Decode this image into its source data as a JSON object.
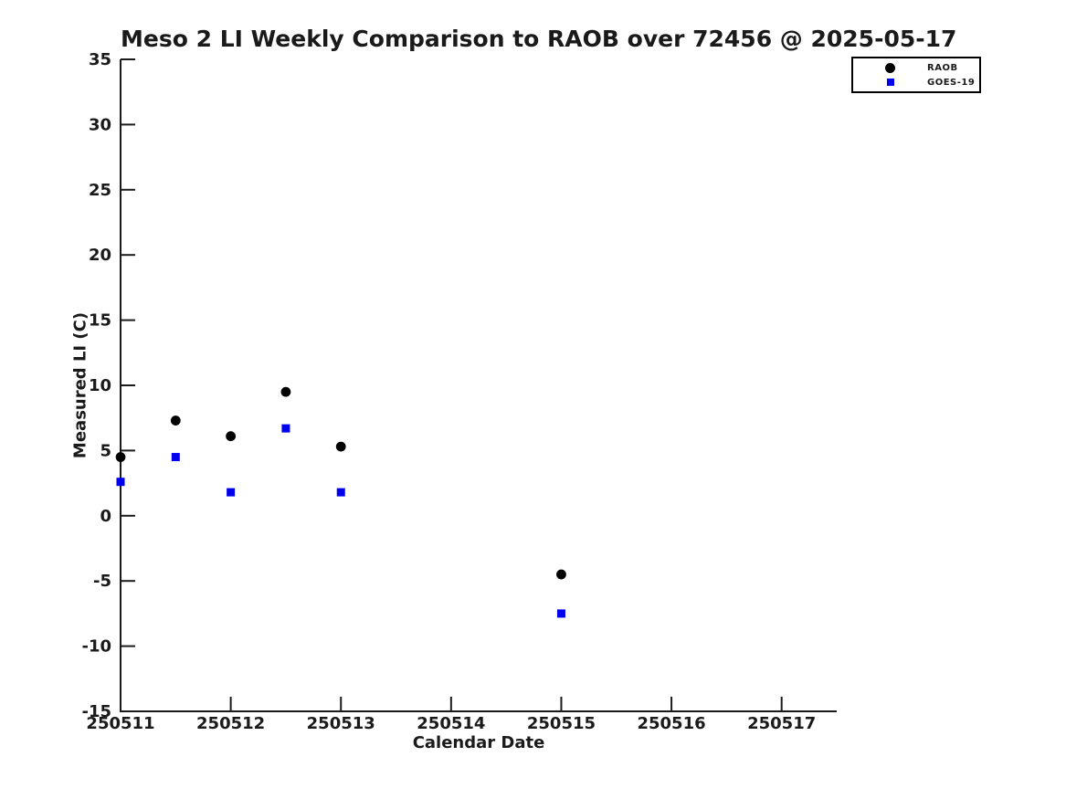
{
  "page": {
    "background": "#ffffff",
    "text_color": "#1a1a1a"
  },
  "chart_data": {
    "type": "scatter",
    "title": "Meso 2 LI Weekly Comparison to RAOB over 72456 @ 2025-05-17",
    "xlabel": "Calendar Date",
    "ylabel": "Measured LI (C)",
    "xlim": [
      250511,
      250517.5
    ],
    "ylim": [
      -15,
      35
    ],
    "xticks": [
      250511,
      250512,
      250513,
      250514,
      250515,
      250516,
      250517
    ],
    "yticks": [
      -15,
      -10,
      -5,
      0,
      5,
      10,
      15,
      20,
      25,
      30,
      35
    ],
    "grid": false,
    "legend_position": "top-right",
    "axis_color": "#1a1a1a",
    "series": [
      {
        "name": "RAOB",
        "marker": "circle",
        "color": "#000000",
        "x": [
          250511,
          250511.5,
          250512,
          250512.5,
          250513,
          250515
        ],
        "y": [
          4.5,
          7.3,
          6.1,
          9.5,
          5.3,
          -4.5
        ]
      },
      {
        "name": "GOES-19",
        "marker": "square",
        "color": "#0000ee",
        "x": [
          250511,
          250511.5,
          250512,
          250512.5,
          250513,
          250515
        ],
        "y": [
          2.6,
          4.5,
          1.8,
          6.7,
          1.8,
          -7.5
        ]
      }
    ]
  }
}
